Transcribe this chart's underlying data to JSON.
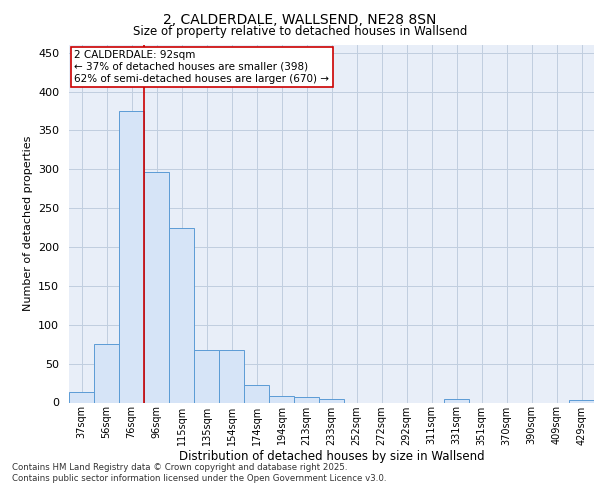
{
  "title": "2, CALDERDALE, WALLSEND, NE28 8SN",
  "subtitle": "Size of property relative to detached houses in Wallsend",
  "xlabel": "Distribution of detached houses by size in Wallsend",
  "ylabel": "Number of detached properties",
  "categories": [
    "37sqm",
    "56sqm",
    "76sqm",
    "96sqm",
    "115sqm",
    "135sqm",
    "154sqm",
    "174sqm",
    "194sqm",
    "213sqm",
    "233sqm",
    "252sqm",
    "272sqm",
    "292sqm",
    "311sqm",
    "331sqm",
    "351sqm",
    "370sqm",
    "390sqm",
    "409sqm",
    "429sqm"
  ],
  "values": [
    14,
    75,
    375,
    297,
    224,
    67,
    67,
    23,
    8,
    7,
    4,
    0,
    0,
    0,
    0,
    4,
    0,
    0,
    0,
    0,
    3
  ],
  "bar_color": "#d6e4f7",
  "bar_edge_color": "#5b9bd5",
  "grid_color": "#c0cedf",
  "background_color": "#e8eef8",
  "property_label": "2 CALDERDALE: 92sqm",
  "pct_smaller": 37,
  "n_smaller": 398,
  "pct_semi_larger": 62,
  "n_semi_larger": 670,
  "annotation_box_color": "#ffffff",
  "annotation_box_edge": "#cc0000",
  "vline_color": "#cc0000",
  "vline_x_index": 2.5,
  "ylim": [
    0,
    460
  ],
  "yticks": [
    0,
    50,
    100,
    150,
    200,
    250,
    300,
    350,
    400,
    450
  ],
  "footer_line1": "Contains HM Land Registry data © Crown copyright and database right 2025.",
  "footer_line2": "Contains public sector information licensed under the Open Government Licence v3.0."
}
